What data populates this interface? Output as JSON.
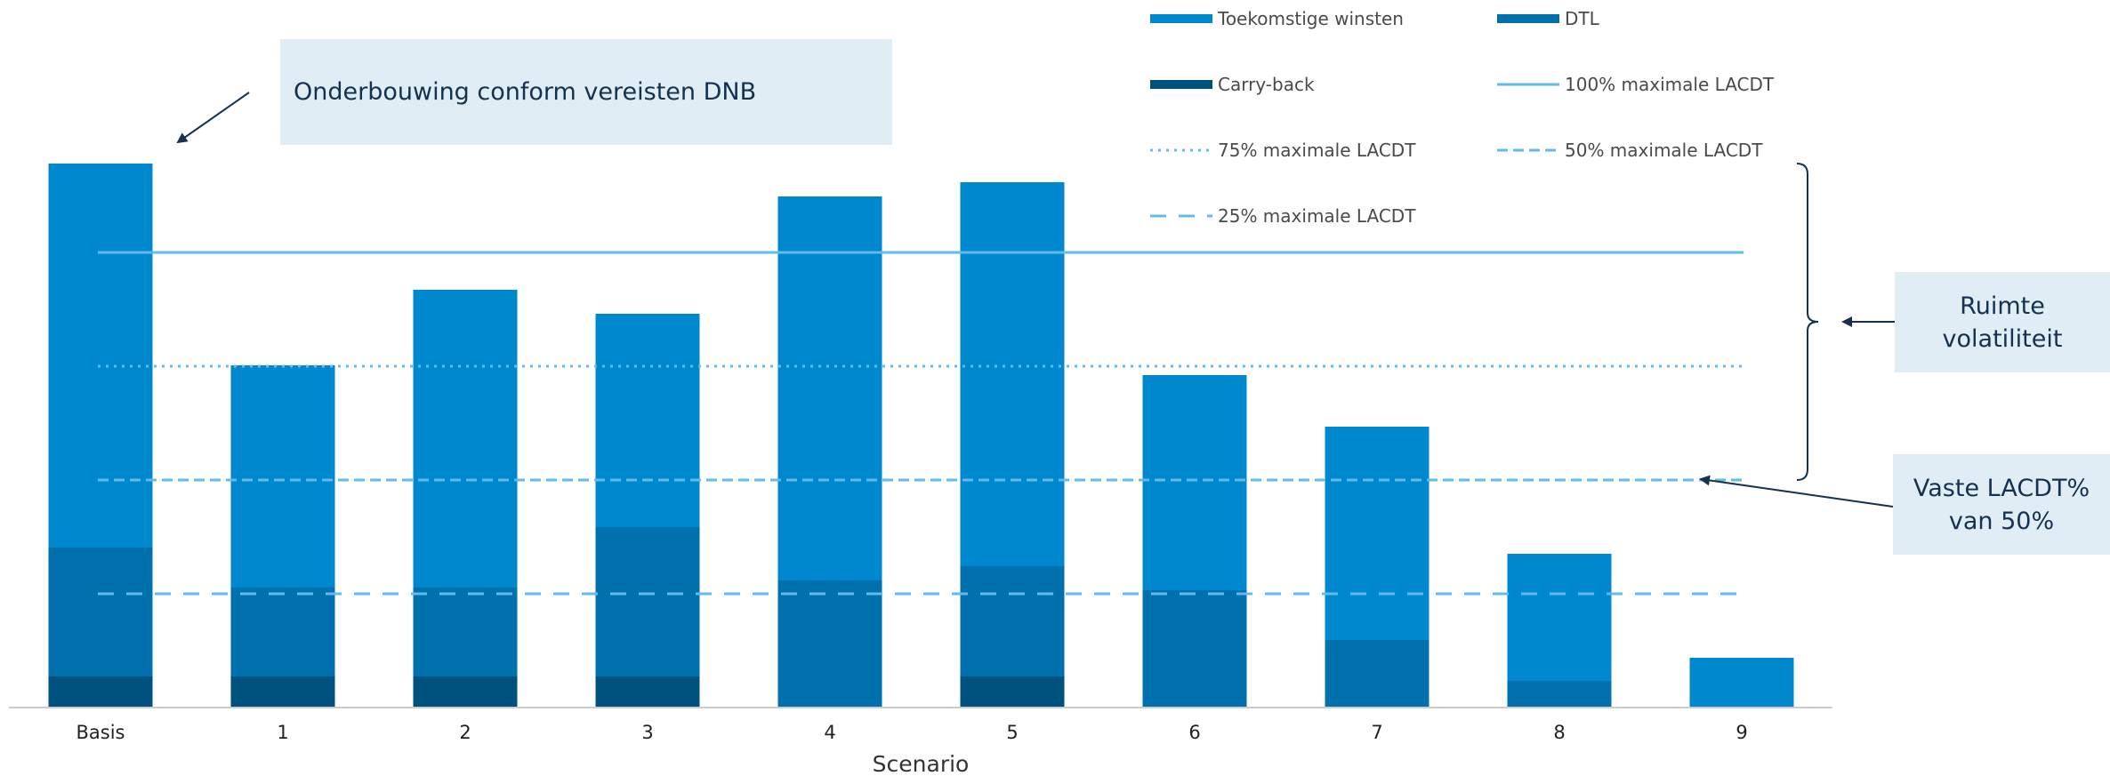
{
  "chart_data": {
    "type": "bar",
    "stacked": true,
    "xlabel": "Scenario",
    "categories": [
      "Basis",
      "1",
      "2",
      "3",
      "4",
      "5",
      "6",
      "7",
      "8",
      "9"
    ],
    "series": [
      {
        "name": "Carry-back",
        "color": "#00527e",
        "values": [
          35,
          35,
          35,
          35,
          0,
          35,
          0,
          0,
          0,
          0
        ]
      },
      {
        "name": "DTL",
        "color": "#0071ad",
        "values": [
          145,
          100,
          100,
          168,
          143,
          124,
          132,
          76,
          30,
          0
        ]
      },
      {
        "name": "Toekomstige winsten",
        "color": "#0088cf",
        "values": [
          432,
          250,
          335,
          240,
          432,
          432,
          242,
          240,
          143,
          56
        ]
      }
    ],
    "reference_lines": [
      {
        "name": "100% maximale LACDT",
        "value": 512,
        "style": "solid",
        "color": "#62bbec"
      },
      {
        "name": "75% maximale LACDT",
        "value": 384,
        "style": "dotted",
        "color": "#62bbec"
      },
      {
        "name": "50% maximale LACDT",
        "value": 256,
        "style": "dashed-short",
        "color": "#62bbec"
      },
      {
        "name": "25% maximale LACDT",
        "value": 128,
        "style": "dashed-long",
        "color": "#62bbec"
      }
    ],
    "legend": [
      "Toekomstige winsten",
      "DTL",
      "Carry-back",
      "100% maximale LACDT",
      "75% maximale LACDT",
      "50% maximale LACDT",
      "25% maximale LACDT"
    ],
    "legend_position": "top-right",
    "ylim": [
      0,
      620
    ],
    "grid": false
  },
  "annotations": {
    "dnb": "Onderbouwing conform vereisten DNB",
    "ruimte": [
      "Ruimte",
      "volatiliteit"
    ],
    "vaste": [
      "Vaste LACDT%",
      "van 50%"
    ]
  },
  "colors": {
    "callout_bg": "#e1edf5",
    "annotation_text": "#14324f",
    "axis": "#cccccc"
  }
}
